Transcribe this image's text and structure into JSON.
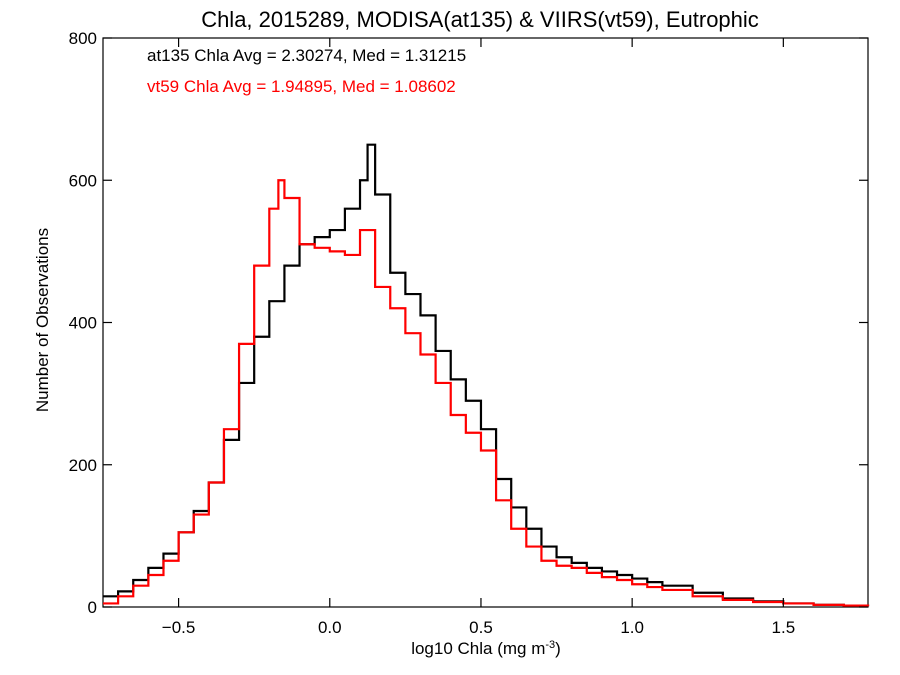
{
  "chart_data": {
    "type": "line",
    "title": "Chla, 2015289, MODISA(at135) & VIIRS(vt59), Eutrophic",
    "xlabel": "log10 Chla (mg m",
    "xlabel_sup": "-3",
    "xlabel_end": ")",
    "ylabel": "Number of Observations",
    "xlim": [
      -0.75,
      1.78
    ],
    "ylim": [
      0,
      800
    ],
    "x_ticks": [
      -0.5,
      0.0,
      0.5,
      1.0,
      1.5
    ],
    "x_tick_labels": [
      "−0.5",
      "0.0",
      "0.5",
      "1.0",
      "1.5"
    ],
    "y_ticks": [
      0,
      200,
      400,
      600,
      800
    ],
    "y_tick_labels": [
      "0",
      "200",
      "400",
      "600",
      "800"
    ],
    "grid": false,
    "annotations": [
      {
        "text": "at135 Chla Avg = 2.30274, Med = 1.31215",
        "color": "#000000"
      },
      {
        "text": "vt59 Chla Avg = 1.94895, Med = 1.08602",
        "color": "#ff0000"
      }
    ],
    "series": [
      {
        "color": "#000000",
        "x": [
          -0.75,
          -0.7,
          -0.65,
          -0.6,
          -0.55,
          -0.5,
          -0.45,
          -0.4,
          -0.35,
          -0.3,
          -0.25,
          -0.2,
          -0.15,
          -0.1,
          -0.05,
          0.0,
          0.05,
          0.1,
          0.125,
          0.15,
          0.2,
          0.25,
          0.3,
          0.35,
          0.4,
          0.45,
          0.5,
          0.55,
          0.6,
          0.65,
          0.7,
          0.75,
          0.8,
          0.85,
          0.9,
          0.95,
          1.0,
          1.05,
          1.1,
          1.2,
          1.3,
          1.4,
          1.5,
          1.6,
          1.7,
          1.78
        ],
        "y": [
          15,
          22,
          38,
          55,
          75,
          105,
          135,
          175,
          235,
          315,
          380,
          430,
          480,
          510,
          520,
          530,
          560,
          600,
          650,
          580,
          470,
          440,
          410,
          360,
          320,
          290,
          250,
          180,
          140,
          110,
          85,
          70,
          62,
          55,
          50,
          45,
          40,
          35,
          30,
          20,
          12,
          8,
          5,
          3,
          2,
          1
        ]
      },
      {
        "color": "#ff0000",
        "x": [
          -0.75,
          -0.7,
          -0.65,
          -0.6,
          -0.55,
          -0.5,
          -0.45,
          -0.4,
          -0.35,
          -0.3,
          -0.25,
          -0.2,
          -0.17,
          -0.15,
          -0.1,
          -0.05,
          0.0,
          0.05,
          0.1,
          0.15,
          0.2,
          0.25,
          0.3,
          0.35,
          0.4,
          0.45,
          0.5,
          0.55,
          0.6,
          0.65,
          0.7,
          0.75,
          0.8,
          0.85,
          0.9,
          0.95,
          1.0,
          1.05,
          1.1,
          1.2,
          1.3,
          1.4,
          1.5,
          1.6,
          1.7,
          1.78
        ],
        "y": [
          5,
          15,
          30,
          45,
          65,
          105,
          130,
          175,
          250,
          370,
          480,
          560,
          600,
          575,
          510,
          505,
          500,
          495,
          530,
          450,
          420,
          385,
          355,
          315,
          270,
          245,
          220,
          150,
          110,
          85,
          65,
          58,
          55,
          48,
          42,
          38,
          32,
          28,
          24,
          15,
          10,
          7,
          5,
          3,
          2,
          1
        ]
      }
    ]
  }
}
